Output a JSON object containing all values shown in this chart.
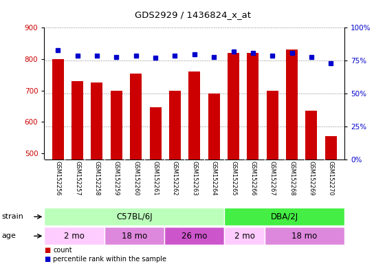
{
  "title": "GDS2929 / 1436824_x_at",
  "samples": [
    "GSM152256",
    "GSM152257",
    "GSM152258",
    "GSM152259",
    "GSM152260",
    "GSM152261",
    "GSM152262",
    "GSM152263",
    "GSM152264",
    "GSM152265",
    "GSM152266",
    "GSM152267",
    "GSM152268",
    "GSM152269",
    "GSM152270"
  ],
  "counts": [
    800,
    730,
    725,
    700,
    755,
    648,
    700,
    760,
    690,
    820,
    820,
    700,
    830,
    637,
    555
  ],
  "percentile_ranks": [
    83,
    79,
    79,
    78,
    79,
    77,
    79,
    80,
    78,
    82,
    81,
    79,
    81,
    78,
    73
  ],
  "ylim_left": [
    480,
    900
  ],
  "ylim_right": [
    0,
    100
  ],
  "yticks_left": [
    500,
    600,
    700,
    800,
    900
  ],
  "yticks_right": [
    0,
    25,
    50,
    75,
    100
  ],
  "bar_color": "#cc0000",
  "dot_color": "#0000cc",
  "strain_groups": [
    {
      "label": "C57BL/6J",
      "start": 0,
      "end": 9,
      "color": "#bbffbb"
    },
    {
      "label": "DBA/2J",
      "start": 9,
      "end": 15,
      "color": "#44ee44"
    }
  ],
  "age_groups": [
    {
      "label": "2 mo",
      "start": 0,
      "end": 3,
      "color": "#ffccff"
    },
    {
      "label": "18 mo",
      "start": 3,
      "end": 6,
      "color": "#dd88dd"
    },
    {
      "label": "26 mo",
      "start": 6,
      "end": 9,
      "color": "#cc55cc"
    },
    {
      "label": "2 mo",
      "start": 9,
      "end": 11,
      "color": "#ffccff"
    },
    {
      "label": "18 mo",
      "start": 11,
      "end": 15,
      "color": "#dd88dd"
    }
  ],
  "grid_dotted_values": [
    600,
    700,
    800
  ],
  "background_color": "#ffffff",
  "tick_area_bg": "#d8d8d8"
}
